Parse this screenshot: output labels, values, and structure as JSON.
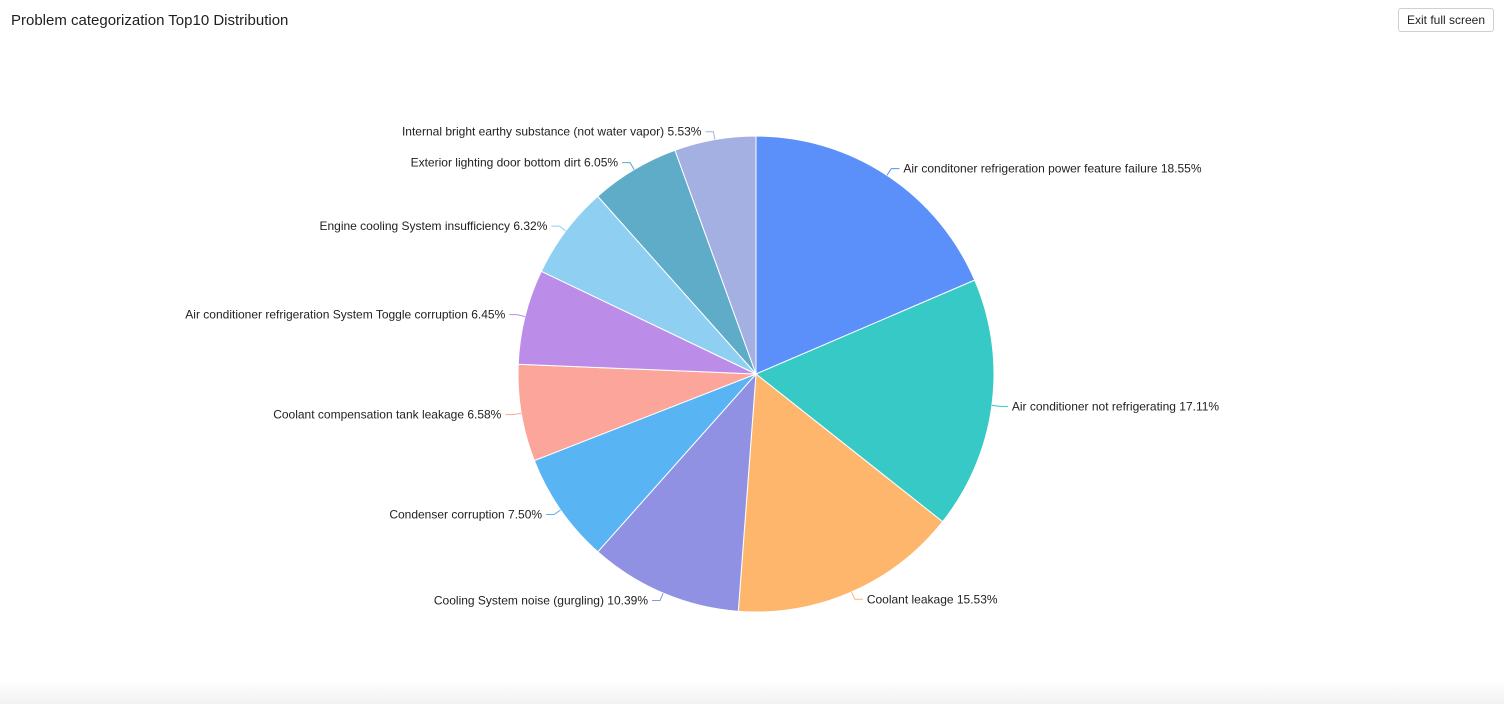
{
  "header": {
    "title": "Problem categorization Top10 Distribution",
    "exit_label": "Exit full screen"
  },
  "chart_data": {
    "type": "pie",
    "title": "Problem categorization Top10 Distribution",
    "slices": [
      {
        "label": "Air conditoner refrigeration power feature failure 18.55%",
        "value": 18.55,
        "color": "#5b8ff9"
      },
      {
        "label": "Air conditioner not refrigerating 17.11%",
        "value": 17.11,
        "color": "#36c9c6"
      },
      {
        "label": "Coolant leakage 15.53%",
        "value": 15.53,
        "color": "#fdb66c"
      },
      {
        "label": "Cooling System noise (gurgling) 10.39%",
        "value": 10.39,
        "color": "#9091e3"
      },
      {
        "label": "Condenser corruption 7.50%",
        "value": 7.5,
        "color": "#58b4f3"
      },
      {
        "label": "Coolant compensation tank leakage 6.58%",
        "value": 6.58,
        "color": "#fca59b"
      },
      {
        "label": "Air conditioner refrigeration System Toggle corruption 6.45%",
        "value": 6.45,
        "color": "#bb8de8"
      },
      {
        "label": "Engine cooling System insufficiency 6.32%",
        "value": 6.32,
        "color": "#8fd0f2"
      },
      {
        "label": "Exterior lighting door bottom dirt 6.05%",
        "value": 6.05,
        "color": "#5eacc8"
      },
      {
        "label": "Internal bright earthy substance (not water vapor) 5.53%",
        "value": 5.53,
        "color": "#a4afe2"
      }
    ]
  }
}
